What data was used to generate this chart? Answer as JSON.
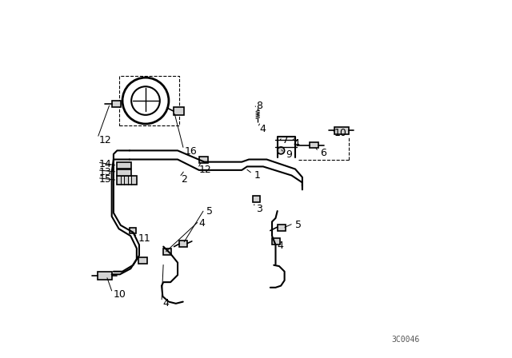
{
  "bg_color": "#ffffff",
  "line_color": "#000000",
  "line_width": 1.2,
  "diagram_code": "3C0046"
}
